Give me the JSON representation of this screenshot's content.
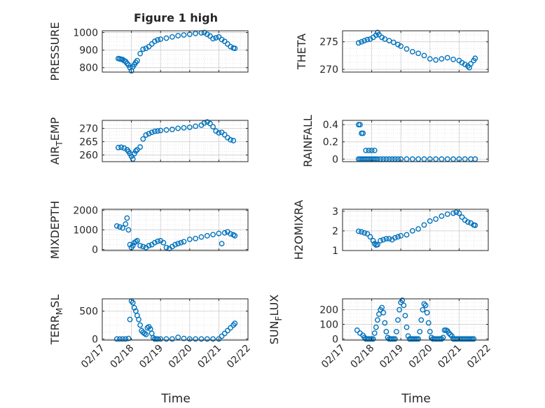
{
  "figure": {
    "title": "Figure 1 high",
    "xlabel": "Time",
    "marker_color": "#0072BD"
  },
  "chart_data": [
    {
      "type": "scatter",
      "marker": "open-circle",
      "ylabel": "PRESSURE",
      "ylim": [
        775,
        1010
      ],
      "yticks": [
        800,
        900,
        1000
      ],
      "xlim": [
        0,
        5
      ],
      "xticklabels": [
        "02/17",
        "02/18",
        "02/19",
        "02/20",
        "02/21",
        "02/22"
      ],
      "grid": true,
      "x": [
        0.55,
        0.6,
        0.65,
        0.7,
        0.75,
        0.8,
        0.85,
        0.9,
        0.95,
        1.0,
        1.05,
        1.1,
        1.15,
        1.2,
        1.3,
        1.4,
        1.5,
        1.6,
        1.7,
        1.8,
        1.9,
        2.0,
        2.2,
        2.4,
        2.6,
        2.8,
        3.0,
        3.2,
        3.4,
        3.5,
        3.6,
        3.7,
        3.8,
        3.9,
        4.0,
        4.1,
        4.2,
        4.3,
        4.4,
        4.5,
        4.55
      ],
      "y": [
        852,
        850,
        848,
        846,
        840,
        835,
        825,
        815,
        800,
        782,
        805,
        818,
        830,
        840,
        880,
        905,
        910,
        920,
        935,
        950,
        958,
        962,
        968,
        975,
        982,
        986,
        990,
        995,
        998,
        1000,
        990,
        980,
        965,
        970,
        975,
        960,
        950,
        935,
        920,
        912,
        910
      ]
    },
    {
      "type": "scatter",
      "marker": "open-circle",
      "ylabel": "THETA",
      "ylim": [
        269.5,
        277
      ],
      "yticks": [
        270,
        275
      ],
      "xlim": [
        0,
        5
      ],
      "xticklabels": [
        "02/17",
        "02/18",
        "02/19",
        "02/20",
        "02/21",
        "02/22"
      ],
      "grid": true,
      "x": [
        0.55,
        0.65,
        0.75,
        0.85,
        0.95,
        1.05,
        1.15,
        1.2,
        1.25,
        1.35,
        1.45,
        1.6,
        1.75,
        1.9,
        2.0,
        2.2,
        2.4,
        2.6,
        2.8,
        3.0,
        3.2,
        3.4,
        3.6,
        3.8,
        4.0,
        4.1,
        4.2,
        4.3,
        4.35,
        4.4,
        4.5,
        4.55
      ],
      "y": [
        274.8,
        275,
        275.2,
        275.4,
        275.5,
        275.8,
        276.2,
        276.7,
        276.3,
        275.8,
        275.5,
        275.2,
        274.9,
        274.5,
        274.2,
        273.7,
        273.2,
        272.9,
        272.5,
        271.9,
        271.7,
        271.9,
        272.1,
        271.8,
        271.6,
        271.2,
        270.9,
        270.6,
        270.3,
        271.0,
        271.6,
        272.0
      ]
    },
    {
      "type": "scatter",
      "marker": "open-circle",
      "ylabel": "AIR_TEMP",
      "ylim": [
        257.5,
        273
      ],
      "yticks": [
        260,
        265,
        270
      ],
      "xlim": [
        0,
        5
      ],
      "xticklabels": [
        "02/17",
        "02/18",
        "02/19",
        "02/20",
        "02/21",
        "02/22"
      ],
      "grid": true,
      "x": [
        0.55,
        0.65,
        0.75,
        0.85,
        0.9,
        0.95,
        1.0,
        1.05,
        1.1,
        1.15,
        1.2,
        1.3,
        1.4,
        1.5,
        1.6,
        1.7,
        1.8,
        1.9,
        2.0,
        2.2,
        2.4,
        2.6,
        2.8,
        3.0,
        3.2,
        3.4,
        3.5,
        3.6,
        3.7,
        3.8,
        3.9,
        4.0,
        4.1,
        4.2,
        4.3,
        4.4,
        4.5
      ],
      "y": [
        262.8,
        262.9,
        262.6,
        262,
        261.3,
        260.5,
        259.5,
        258.5,
        260.5,
        261.5,
        262,
        263,
        266,
        267.5,
        268,
        268.5,
        268.9,
        269,
        269.2,
        269.4,
        269.6,
        270,
        270.2,
        270.4,
        270.8,
        271.2,
        272,
        272.4,
        271.8,
        270.6,
        269,
        268.3,
        268.5,
        267.6,
        266.5,
        265.7,
        265.4
      ]
    },
    {
      "type": "scatter",
      "marker": "open-circle",
      "ylabel": "RAINFALL",
      "ylim": [
        -0.03,
        0.45
      ],
      "yticks": [
        0,
        0.2,
        0.4
      ],
      "xlim": [
        0,
        5
      ],
      "xticklabels": [
        "02/17",
        "02/18",
        "02/19",
        "02/20",
        "02/21",
        "02/22"
      ],
      "grid": true,
      "x": [
        0.55,
        0.6,
        0.65,
        0.7,
        0.75,
        0.8,
        0.85,
        0.9,
        0.95,
        1.0,
        1.05,
        1.1,
        1.15,
        1.2,
        1.3,
        1.4,
        1.5,
        1.6,
        1.7,
        1.8,
        1.9,
        2.0,
        2.2,
        2.4,
        2.6,
        2.8,
        3.0,
        3.2,
        3.4,
        3.6,
        3.8,
        4.0,
        4.2,
        4.4,
        4.55,
        0.55,
        0.6,
        0.65,
        0.7,
        0.8,
        0.9,
        1.0,
        1.1
      ],
      "y": [
        0,
        0,
        0,
        0,
        0,
        0,
        0,
        0,
        0,
        0,
        0,
        0,
        0,
        0,
        0,
        0,
        0,
        0,
        0,
        0,
        0,
        0,
        0,
        0,
        0,
        0,
        0,
        0,
        0,
        0,
        0,
        0,
        0,
        0,
        0,
        0.4,
        0.4,
        0.3,
        0.3,
        0.1,
        0.1,
        0.1,
        0.1
      ]
    },
    {
      "type": "scatter",
      "marker": "open-circle",
      "ylabel": "MIXDEPTH",
      "ylim": [
        -50,
        2050
      ],
      "yticks": [
        0,
        1000,
        2000
      ],
      "xlim": [
        0,
        5
      ],
      "xticklabels": [
        "02/17",
        "02/18",
        "02/19",
        "02/20",
        "02/21",
        "02/22"
      ],
      "grid": true,
      "x": [
        0.5,
        0.6,
        0.7,
        0.8,
        0.85,
        0.9,
        0.95,
        1.0,
        1.05,
        1.1,
        1.15,
        1.2,
        1.3,
        1.4,
        1.5,
        1.6,
        1.7,
        1.8,
        1.9,
        2.0,
        2.1,
        2.2,
        2.3,
        2.4,
        2.5,
        2.6,
        2.7,
        2.8,
        3.0,
        3.2,
        3.4,
        3.6,
        3.8,
        4.0,
        4.1,
        4.2,
        4.3,
        4.4,
        4.5,
        4.55
      ],
      "y": [
        1200,
        1150,
        1100,
        1300,
        1600,
        1000,
        250,
        100,
        200,
        350,
        400,
        450,
        200,
        150,
        100,
        200,
        250,
        350,
        420,
        450,
        350,
        100,
        50,
        150,
        250,
        300,
        350,
        400,
        520,
        560,
        640,
        700,
        760,
        820,
        300,
        850,
        900,
        800,
        750,
        700
      ]
    },
    {
      "type": "scatter",
      "marker": "open-circle",
      "ylabel": "H2OMIXRA",
      "ylim": [
        1,
        3.1
      ],
      "yticks": [
        1,
        2,
        3
      ],
      "xlim": [
        0,
        5
      ],
      "xticklabels": [
        "02/17",
        "02/18",
        "02/19",
        "02/20",
        "02/21",
        "02/22"
      ],
      "grid": true,
      "x": [
        0.55,
        0.65,
        0.75,
        0.85,
        0.95,
        1.05,
        1.1,
        1.15,
        1.2,
        1.3,
        1.4,
        1.5,
        1.6,
        1.7,
        1.8,
        1.9,
        2.0,
        2.2,
        2.4,
        2.6,
        2.8,
        3.0,
        3.2,
        3.4,
        3.6,
        3.8,
        3.9,
        4.0,
        4.1,
        4.2,
        4.3,
        4.4,
        4.5,
        4.55
      ],
      "y": [
        1.98,
        1.95,
        1.9,
        1.85,
        1.7,
        1.5,
        1.35,
        1.28,
        1.3,
        1.5,
        1.55,
        1.6,
        1.6,
        1.55,
        1.65,
        1.7,
        1.75,
        1.8,
        2.0,
        2.1,
        2.3,
        2.5,
        2.6,
        2.75,
        2.85,
        2.9,
        2.95,
        2.9,
        2.7,
        2.55,
        2.45,
        2.4,
        2.3,
        2.28
      ]
    },
    {
      "type": "scatter",
      "marker": "open-circle",
      "ylabel": "TERR_MSL",
      "ylim": [
        -20,
        720
      ],
      "yticks": [
        0,
        500
      ],
      "xlim": [
        0,
        5
      ],
      "xticklabels": [
        "02/17",
        "02/18",
        "02/19",
        "02/20",
        "02/21",
        "02/22"
      ],
      "grid": true,
      "x": [
        0.5,
        0.6,
        0.7,
        0.8,
        0.9,
        0.95,
        1.0,
        1.05,
        1.1,
        1.15,
        1.2,
        1.25,
        1.3,
        1.35,
        1.4,
        1.45,
        1.5,
        1.55,
        1.6,
        1.65,
        1.7,
        1.75,
        1.8,
        1.85,
        1.9,
        2.0,
        2.2,
        2.4,
        2.6,
        2.8,
        3.0,
        3.2,
        3.4,
        3.6,
        3.8,
        4.0,
        4.1,
        4.2,
        4.3,
        4.4,
        4.5,
        4.55
      ],
      "y": [
        0,
        0,
        0,
        0,
        10,
        350,
        680,
        650,
        560,
        500,
        420,
        350,
        250,
        150,
        120,
        100,
        80,
        200,
        220,
        180,
        100,
        20,
        0,
        0,
        0,
        0,
        0,
        0,
        30,
        10,
        0,
        0,
        0,
        0,
        0,
        0,
        50,
        100,
        150,
        200,
        250,
        280
      ]
    },
    {
      "type": "scatter",
      "marker": "open-circle",
      "ylabel": "SUN_FLUX",
      "ylim": [
        -8,
        275
      ],
      "yticks": [
        0,
        100,
        200
      ],
      "xlim": [
        0,
        5
      ],
      "xticklabels": [
        "02/17",
        "02/18",
        "02/19",
        "02/20",
        "02/21",
        "02/22"
      ],
      "grid": true,
      "x": [
        0.5,
        0.6,
        0.7,
        0.75,
        0.8,
        0.85,
        0.9,
        0.95,
        1.0,
        1.05,
        1.1,
        1.15,
        1.2,
        1.25,
        1.3,
        1.35,
        1.4,
        1.45,
        1.5,
        1.55,
        1.6,
        1.65,
        1.7,
        1.75,
        1.8,
        1.85,
        1.9,
        1.95,
        2.0,
        2.05,
        2.1,
        2.15,
        2.2,
        2.25,
        2.3,
        2.35,
        2.4,
        2.45,
        2.5,
        2.55,
        2.6,
        2.65,
        2.7,
        2.75,
        2.8,
        2.85,
        2.9,
        2.95,
        3.0,
        3.05,
        3.1,
        3.15,
        3.2,
        3.25,
        3.3,
        3.35,
        3.4,
        3.45,
        3.5,
        3.55,
        3.6,
        3.65,
        3.7,
        3.75,
        3.8,
        3.85,
        3.9,
        3.95,
        4.0,
        4.05,
        4.1,
        4.15,
        4.2,
        4.25,
        4.3,
        4.35,
        4.4,
        4.45,
        4.5
      ],
      "y": [
        60,
        40,
        25,
        10,
        0,
        0,
        0,
        0,
        0,
        0,
        40,
        80,
        130,
        170,
        200,
        215,
        180,
        110,
        50,
        10,
        0,
        0,
        0,
        0,
        0,
        50,
        130,
        200,
        250,
        265,
        230,
        160,
        80,
        20,
        0,
        0,
        0,
        0,
        0,
        0,
        0,
        50,
        130,
        200,
        240,
        230,
        180,
        110,
        50,
        10,
        0,
        0,
        0,
        0,
        0,
        0,
        0,
        10,
        60,
        60,
        55,
        40,
        30,
        20,
        0,
        0,
        0,
        0,
        0,
        0,
        0,
        0,
        0,
        0,
        0,
        0,
        0,
        0,
        0
      ]
    }
  ]
}
